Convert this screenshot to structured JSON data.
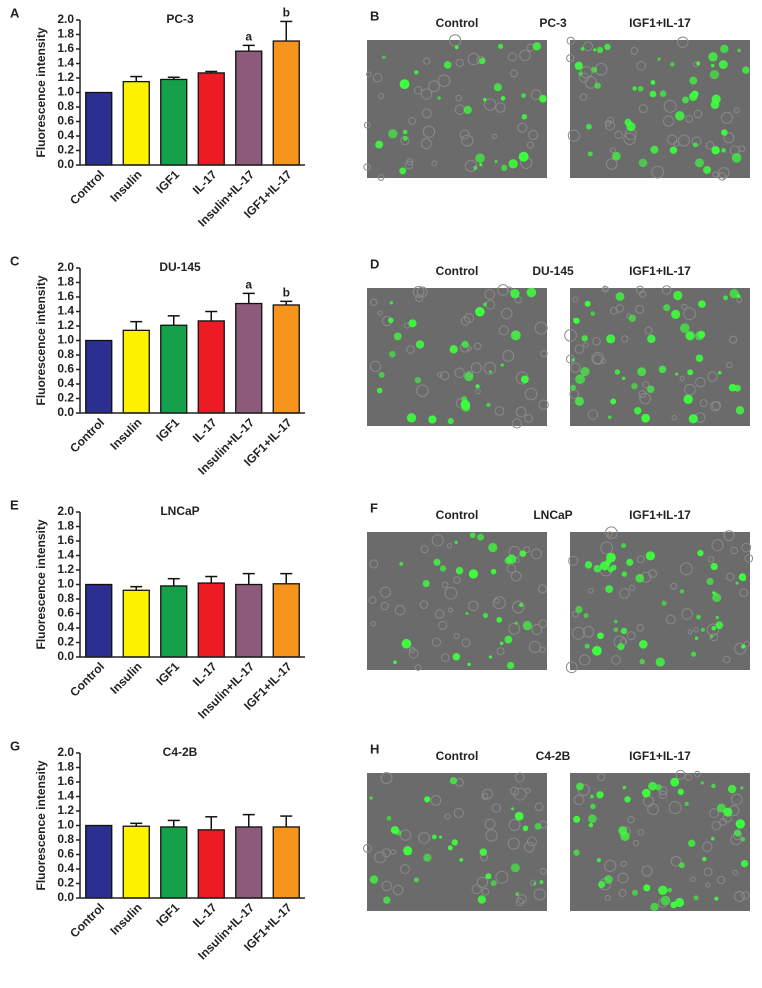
{
  "chart_data": [
    {
      "type": "bar",
      "panel": "A",
      "title": "PC-3",
      "ylabel": "Fluorescence intensity",
      "categories": [
        "Control",
        "Insulin",
        "IGF1",
        "IL-17",
        "Insulin+IL-17",
        "IGF1+IL-17"
      ],
      "values": [
        1.0,
        1.15,
        1.18,
        1.27,
        1.57,
        1.71
      ],
      "errors": [
        0,
        0.07,
        0.03,
        0.02,
        0.08,
        0.27
      ],
      "annotations": [
        null,
        null,
        null,
        null,
        "a",
        "b"
      ],
      "colors": [
        "#2b2f8f",
        "#fff200",
        "#16a04a",
        "#ed1c24",
        "#8d5a7a",
        "#f7941d"
      ],
      "ylim": [
        0,
        2
      ],
      "yticks": [
        {
          "value": 0,
          "label": "0.0"
        },
        0.2,
        0.4,
        0.6,
        0.8,
        {
          "value": 1,
          "label": "1.0"
        },
        1.2,
        1.4,
        1.6,
        1.8,
        {
          "value": 2,
          "label": "2.0"
        }
      ]
    },
    {
      "type": "bar",
      "panel": "C",
      "title": "DU-145",
      "ylabel": "Fluorescence intensity",
      "categories": [
        "Control",
        "Insulin",
        "IGF1",
        "IL-17",
        "Insulin+IL-17",
        "IGF1+IL-17"
      ],
      "values": [
        1.0,
        1.14,
        1.21,
        1.27,
        1.51,
        1.49
      ],
      "errors": [
        0,
        0.12,
        0.13,
        0.13,
        0.14,
        0.05
      ],
      "annotations": [
        null,
        null,
        null,
        null,
        "a",
        "b"
      ],
      "colors": [
        "#2b2f8f",
        "#fff200",
        "#16a04a",
        "#ed1c24",
        "#8d5a7a",
        "#f7941d"
      ],
      "ylim": [
        0,
        2
      ],
      "yticks": [
        {
          "value": 0,
          "label": "0.0"
        },
        0.2,
        0.4,
        0.6,
        0.8,
        {
          "value": 1,
          "label": "1.0"
        },
        1.2,
        1.4,
        1.6,
        1.8,
        {
          "value": 2,
          "label": "2.0"
        }
      ]
    },
    {
      "type": "bar",
      "panel": "E",
      "title": "LNCaP",
      "ylabel": "Fluorescence intensity",
      "categories": [
        "Control",
        "Insulin",
        "IGF1",
        "IL-17",
        "Insulin+IL-17",
        "IGF1+IL-17"
      ],
      "values": [
        1.0,
        0.92,
        0.98,
        1.02,
        1.0,
        1.01
      ],
      "errors": [
        0,
        0.05,
        0.1,
        0.09,
        0.15,
        0.14
      ],
      "colors": [
        "#2b2f8f",
        "#fff200",
        "#16a04a",
        "#ed1c24",
        "#8d5a7a",
        "#f7941d"
      ],
      "ylim": [
        0,
        2
      ],
      "yticks": [
        {
          "value": 0,
          "label": "0.0"
        },
        0.2,
        0.4,
        0.6,
        0.8,
        {
          "value": 1,
          "label": "1.0"
        },
        1.2,
        1.4,
        1.6,
        1.8,
        {
          "value": 2,
          "label": "2.0"
        }
      ]
    },
    {
      "type": "bar",
      "panel": "G",
      "title": "C4-2B",
      "ylabel": "Fluorescence intensity",
      "categories": [
        "Control",
        "Insulin",
        "IGF1",
        "IL-17",
        "Insulin+IL-17",
        "IGF1+IL-17"
      ],
      "values": [
        1.0,
        0.99,
        0.98,
        0.94,
        0.98,
        0.98
      ],
      "errors": [
        0,
        0.04,
        0.09,
        0.18,
        0.17,
        0.15
      ],
      "colors": [
        "#2b2f8f",
        "#fff200",
        "#16a04a",
        "#ed1c24",
        "#8d5a7a",
        "#f7941d"
      ],
      "ylim": [
        0,
        2
      ],
      "yticks": [
        {
          "value": 0,
          "label": "0.0"
        },
        0.2,
        0.4,
        0.6,
        0.8,
        {
          "value": 1,
          "label": "1.0"
        },
        1.2,
        1.4,
        1.6,
        1.8,
        {
          "value": 2,
          "label": "2.0"
        }
      ]
    }
  ],
  "image_panels": [
    {
      "panel": "B",
      "title": "PC-3",
      "images": [
        "Control",
        "IGF1+IL-17"
      ]
    },
    {
      "panel": "D",
      "title": "DU-145",
      "images": [
        "Control",
        "IGF1+IL-17"
      ]
    },
    {
      "panel": "F",
      "title": "LNCaP",
      "images": [
        "Control",
        "IGF1+IL-17"
      ]
    },
    {
      "panel": "H",
      "title": "C4-2B",
      "images": [
        "Control",
        "IGF1+IL-17"
      ]
    }
  ]
}
